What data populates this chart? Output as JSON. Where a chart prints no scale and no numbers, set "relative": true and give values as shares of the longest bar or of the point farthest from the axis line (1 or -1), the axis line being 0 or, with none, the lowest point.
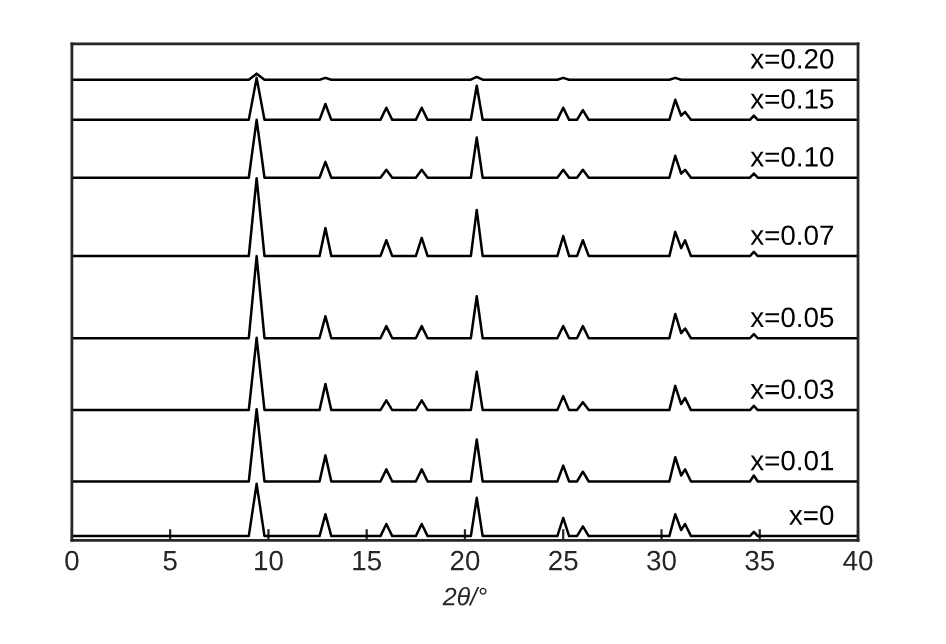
{
  "chart_data": {
    "type": "line",
    "relative": true,
    "xlabel": "2θ/°",
    "xlim": [
      0,
      40
    ],
    "xticks": [
      0,
      5,
      10,
      15,
      20,
      25,
      30,
      35,
      40
    ],
    "grid": false,
    "marker": "none",
    "line_style": "solid",
    "x": [
      0,
      9.0,
      9.4,
      9.8,
      12.6,
      12.9,
      13.2,
      15.7,
      16.0,
      16.3,
      17.5,
      17.8,
      18.1,
      20.3,
      20.6,
      20.9,
      24.7,
      25.0,
      25.3,
      25.7,
      26.0,
      26.3,
      30.4,
      30.7,
      31.0,
      31.2,
      31.5,
      34.5,
      34.7,
      34.9,
      40
    ],
    "series": [
      {
        "name": "x=0",
        "color": "#000000",
        "values": [
          0.009,
          0.009,
          0.121,
          0.009,
          0.009,
          0.056,
          0.009,
          0.009,
          0.035,
          0.009,
          0.009,
          0.035,
          0.009,
          0.009,
          0.091,
          0.009,
          0.009,
          0.048,
          0.009,
          0.009,
          0.03,
          0.009,
          0.009,
          0.056,
          0.022,
          0.035,
          0.009,
          0.009,
          0.018,
          0.009,
          0.009
        ]
      },
      {
        "name": "x=0.01",
        "color": "#000000",
        "values": [
          0.126,
          0.126,
          0.281,
          0.126,
          0.126,
          0.182,
          0.126,
          0.126,
          0.152,
          0.126,
          0.126,
          0.152,
          0.126,
          0.126,
          0.216,
          0.126,
          0.126,
          0.16,
          0.126,
          0.126,
          0.147,
          0.126,
          0.126,
          0.178,
          0.139,
          0.152,
          0.126,
          0.126,
          0.139,
          0.126,
          0.126
        ]
      },
      {
        "name": "x=0.03",
        "color": "#000000",
        "values": [
          0.279,
          0.279,
          0.434,
          0.279,
          0.279,
          0.335,
          0.279,
          0.279,
          0.3,
          0.279,
          0.279,
          0.3,
          0.279,
          0.279,
          0.361,
          0.279,
          0.279,
          0.309,
          0.279,
          0.279,
          0.296,
          0.279,
          0.279,
          0.331,
          0.292,
          0.305,
          0.279,
          0.279,
          0.288,
          0.279,
          0.279
        ]
      },
      {
        "name": "x=0.05",
        "color": "#000000",
        "values": [
          0.433,
          0.433,
          0.609,
          0.433,
          0.433,
          0.48,
          0.433,
          0.433,
          0.459,
          0.433,
          0.433,
          0.459,
          0.433,
          0.433,
          0.523,
          0.433,
          0.433,
          0.459,
          0.433,
          0.433,
          0.459,
          0.433,
          0.433,
          0.485,
          0.444,
          0.454,
          0.433,
          0.433,
          0.442,
          0.433,
          0.433
        ]
      },
      {
        "name": "x=0.07",
        "color": "#000000",
        "values": [
          0.609,
          0.609,
          0.776,
          0.609,
          0.609,
          0.669,
          0.609,
          0.609,
          0.643,
          0.609,
          0.609,
          0.648,
          0.609,
          0.609,
          0.708,
          0.609,
          0.609,
          0.652,
          0.609,
          0.609,
          0.643,
          0.609,
          0.609,
          0.661,
          0.626,
          0.643,
          0.609,
          0.609,
          0.618,
          0.609,
          0.609
        ]
      },
      {
        "name": "x=0.10",
        "color": "#000000",
        "values": [
          0.777,
          0.777,
          0.901,
          0.777,
          0.777,
          0.811,
          0.777,
          0.777,
          0.794,
          0.777,
          0.777,
          0.794,
          0.777,
          0.777,
          0.863,
          0.777,
          0.777,
          0.794,
          0.777,
          0.777,
          0.794,
          0.777,
          0.777,
          0.824,
          0.786,
          0.794,
          0.777,
          0.777,
          0.786,
          0.777,
          0.777
        ]
      },
      {
        "name": "x=0.15",
        "color": "#000000",
        "values": [
          0.901,
          0.901,
          0.991,
          0.901,
          0.901,
          0.935,
          0.901,
          0.901,
          0.927,
          0.901,
          0.901,
          0.927,
          0.901,
          0.901,
          0.974,
          0.901,
          0.901,
          0.927,
          0.901,
          0.901,
          0.922,
          0.901,
          0.901,
          0.944,
          0.91,
          0.918,
          0.901,
          0.901,
          0.91,
          0.901,
          0.901
        ]
      },
      {
        "name": "x=0.20",
        "color": "#000000",
        "values": [
          0.987,
          0.987,
          1.0,
          0.987,
          0.987,
          0.991,
          0.987,
          0.987,
          0.987,
          0.987,
          0.987,
          0.987,
          0.987,
          0.987,
          0.993,
          0.987,
          0.987,
          0.991,
          0.987,
          0.987,
          0.987,
          0.987,
          0.987,
          0.991,
          0.987,
          0.987,
          0.987,
          0.987,
          0.987,
          0.987,
          0.987
        ]
      }
    ]
  }
}
